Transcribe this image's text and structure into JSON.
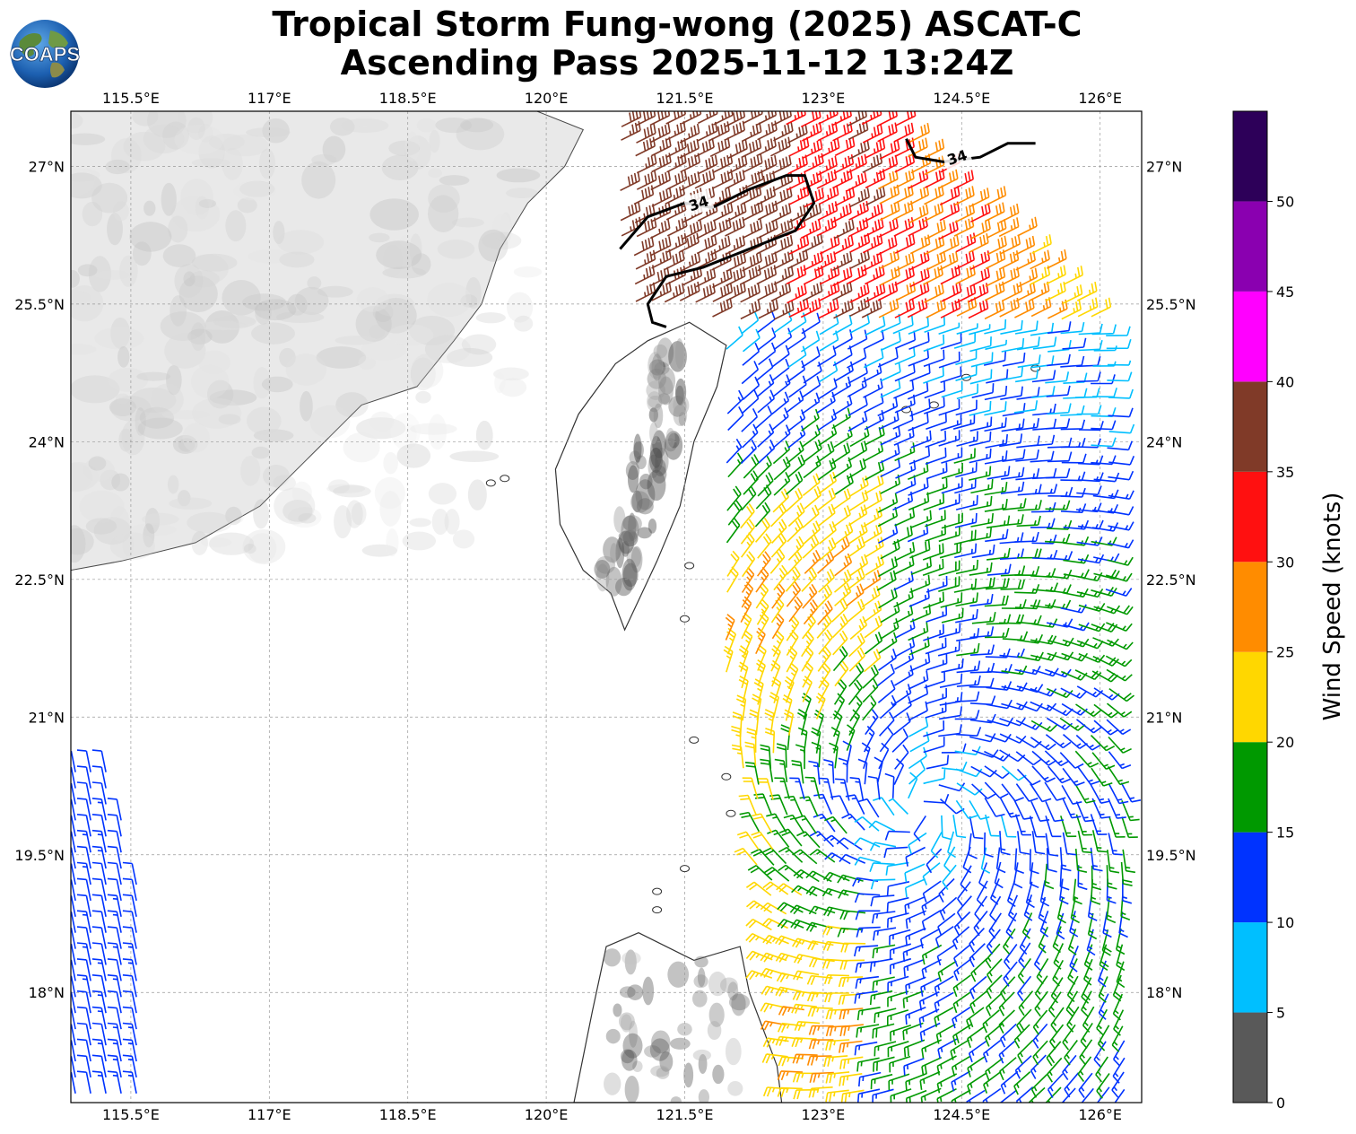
{
  "title": {
    "line1": "Tropical Storm Fung-wong (2025) ASCAT-C",
    "line2": "Ascending Pass 2025-11-12 13:24Z"
  },
  "logo": {
    "text": "COAPS",
    "icon": "globe-logo-icon"
  },
  "map": {
    "lon_range": [
      114.85,
      126.45
    ],
    "lat_range": [
      16.8,
      27.6
    ],
    "lon_ticks": [
      {
        "value": 115.5,
        "label": "115.5°E"
      },
      {
        "value": 117,
        "label": "117°E"
      },
      {
        "value": 118.5,
        "label": "118.5°E"
      },
      {
        "value": 120,
        "label": "120°E"
      },
      {
        "value": 121.5,
        "label": "121.5°E"
      },
      {
        "value": 123,
        "label": "123°E"
      },
      {
        "value": 124.5,
        "label": "124.5°E"
      },
      {
        "value": 126,
        "label": "126°E"
      }
    ],
    "lat_ticks": [
      {
        "value": 27,
        "label": "27°N"
      },
      {
        "value": 25.5,
        "label": "25.5°N"
      },
      {
        "value": 24,
        "label": "24°N"
      },
      {
        "value": 22.5,
        "label": "22.5°N"
      },
      {
        "value": 21,
        "label": "21°N"
      },
      {
        "value": 19.5,
        "label": "19.5°N"
      },
      {
        "value": 18,
        "label": "18°N"
      }
    ],
    "gridlines": true,
    "contour_label": "34",
    "storm_center": {
      "lon": 124.05,
      "lat": 20.0
    }
  },
  "colorbar": {
    "label": "Wind Speed (knots)",
    "ticks": [
      "0",
      "5",
      "10",
      "15",
      "20",
      "25",
      "30",
      "35",
      "40",
      "45",
      "50"
    ],
    "bins": [
      {
        "min": 0,
        "max": 5,
        "color": "#595959"
      },
      {
        "min": 5,
        "max": 10,
        "color": "#00bfff"
      },
      {
        "min": 10,
        "max": 15,
        "color": "#0033ff"
      },
      {
        "min": 15,
        "max": 20,
        "color": "#009900"
      },
      {
        "min": 20,
        "max": 25,
        "color": "#ffd700"
      },
      {
        "min": 25,
        "max": 30,
        "color": "#ff8c00"
      },
      {
        "min": 30,
        "max": 35,
        "color": "#ff1010"
      },
      {
        "min": 35,
        "max": 40,
        "color": "#803a28"
      },
      {
        "min": 40,
        "max": 45,
        "color": "#ff00ff"
      },
      {
        "min": 45,
        "max": 50,
        "color": "#8a00b0"
      },
      {
        "min": 50,
        "max": 55,
        "color": "#2d0059"
      }
    ]
  }
}
